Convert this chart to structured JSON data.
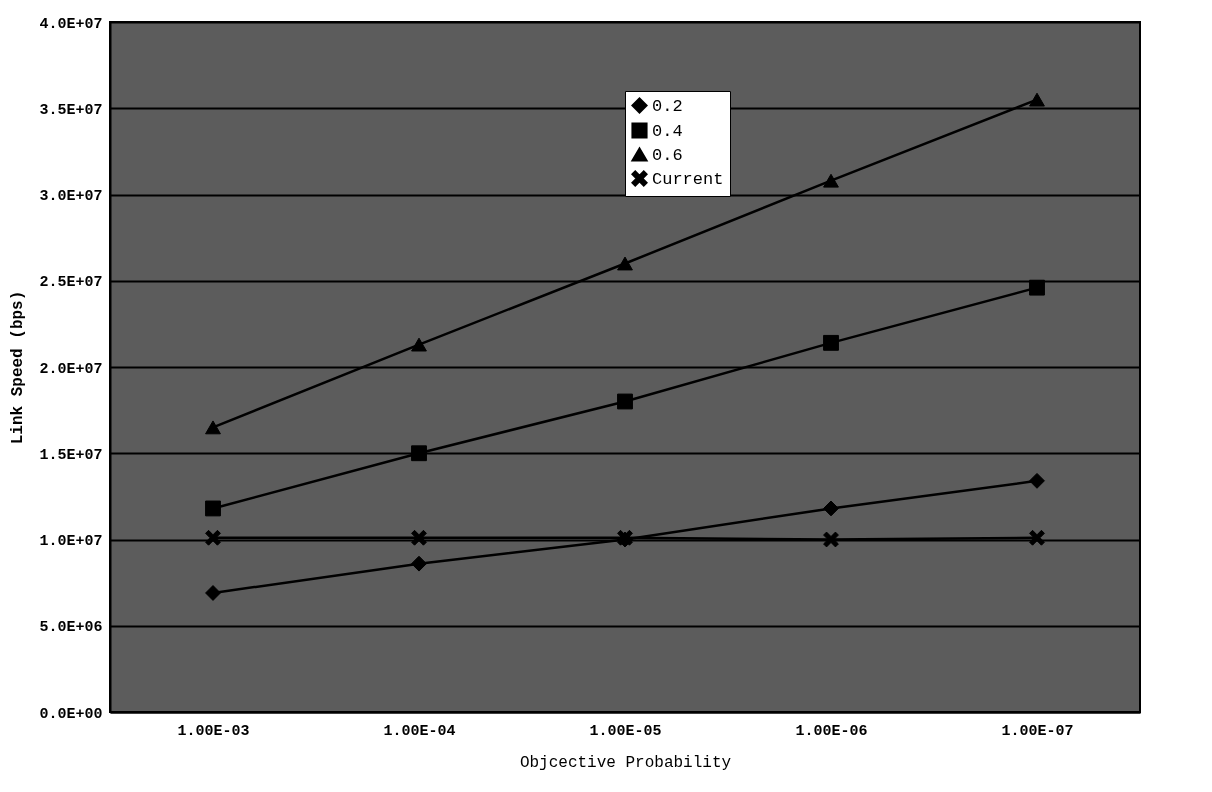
{
  "chart_data": {
    "type": "line",
    "xlabel": "Objcective Probability",
    "ylabel": "Link Speed (bps)",
    "categories": [
      "1.00E-03",
      "1.00E-04",
      "1.00E-05",
      "1.00E-06",
      "1.00E-07"
    ],
    "ylim": [
      0,
      40000000
    ],
    "yticks": [
      {
        "value": 0,
        "label": "0.0E+00"
      },
      {
        "value": 5000000,
        "label": "5.0E+06"
      },
      {
        "value": 10000000,
        "label": "1.0E+07"
      },
      {
        "value": 15000000,
        "label": "1.5E+07"
      },
      {
        "value": 20000000,
        "label": "2.0E+07"
      },
      {
        "value": 25000000,
        "label": "2.5E+07"
      },
      {
        "value": 30000000,
        "label": "3.0E+07"
      },
      {
        "value": 35000000,
        "label": "3.5E+07"
      },
      {
        "value": 40000000,
        "label": "4.0E+07"
      }
    ],
    "grid": "y",
    "legend": "top right",
    "line_style": "solid",
    "series": [
      {
        "name": "0.2",
        "color": "#000000",
        "marker": "diamond",
        "values": [
          6900000,
          8600000,
          10000000,
          11800000,
          13400000
        ]
      },
      {
        "name": "0.4",
        "color": "#000000",
        "marker": "square",
        "values": [
          11800000,
          15000000,
          18000000,
          21400000,
          24600000
        ]
      },
      {
        "name": "0.6",
        "color": "#000000",
        "marker": "triangle",
        "values": [
          16500000,
          21300000,
          26000000,
          30800000,
          35500000
        ]
      },
      {
        "name": "Current",
        "color": "#000000",
        "marker": "cross",
        "values": [
          10100000,
          10100000,
          10100000,
          10000000,
          10100000
        ]
      }
    ]
  }
}
